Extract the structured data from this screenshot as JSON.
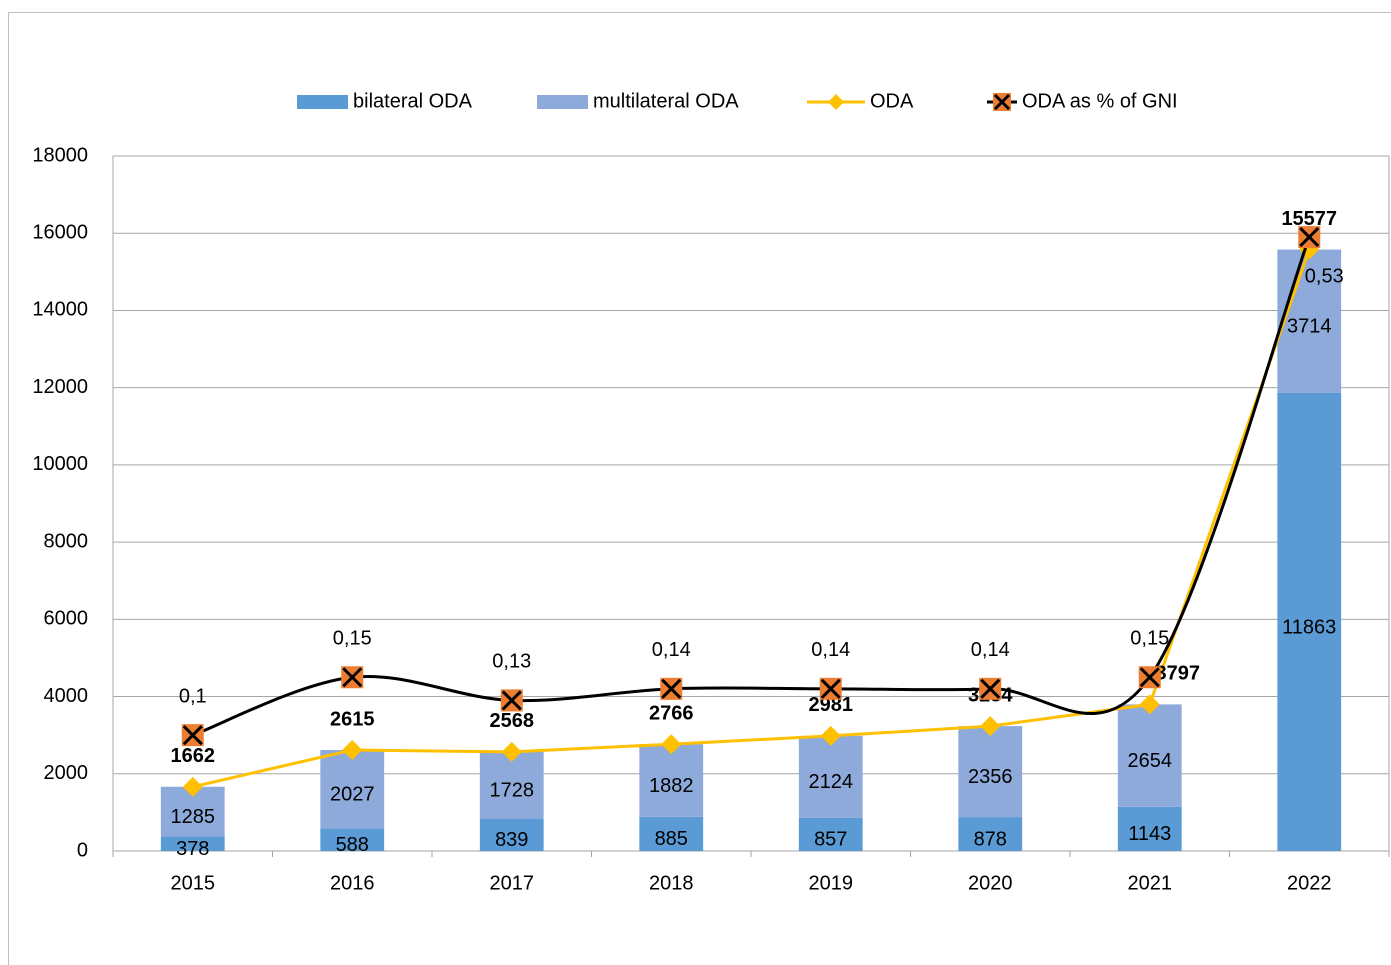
{
  "chart_data": {
    "type": "bar",
    "stacked": true,
    "categories": [
      "2015",
      "2016",
      "2017",
      "2018",
      "2019",
      "2020",
      "2021",
      "2022"
    ],
    "series": [
      {
        "name": "bilateral ODA",
        "type": "bar",
        "color": "#5b9bd5",
        "values": [
          378,
          588,
          839,
          885,
          857,
          878,
          1143,
          11863
        ]
      },
      {
        "name": "multilateral ODA",
        "type": "bar",
        "color": "#8eaadb",
        "values": [
          1285,
          2027,
          1728,
          1882,
          2124,
          2356,
          2654,
          3714
        ]
      },
      {
        "name": "ODA",
        "type": "line",
        "color": "#ffc000",
        "marker": "diamond",
        "values": [
          1662,
          2615,
          2568,
          2766,
          2981,
          3234,
          3797,
          15577
        ]
      },
      {
        "name": "ODA as % of GNI",
        "type": "line",
        "color": "#000000",
        "marker": "x",
        "marker_color": "#ed7d31",
        "axis": "y2",
        "smooth": true,
        "values": [
          0.1,
          0.15,
          0.13,
          0.14,
          0.14,
          0.14,
          0.15,
          0.53
        ],
        "value_labels": [
          "0,1",
          "0,15",
          "0,13",
          "0,14",
          "0,14",
          "0,14",
          "0,15",
          "0,53"
        ]
      }
    ],
    "ylim": [
      0,
      18000
    ],
    "yticks": [
      0,
      2000,
      4000,
      6000,
      8000,
      10000,
      12000,
      14000,
      16000,
      18000
    ],
    "y2lim": [
      0,
      0.6
    ],
    "grid": true,
    "legend": "top"
  }
}
